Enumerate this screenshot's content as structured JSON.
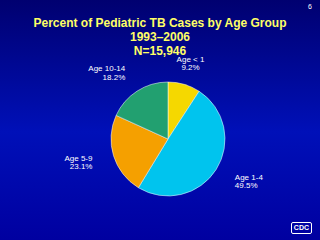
{
  "chart_data": {
    "type": "pie",
    "title": "Percent of Pediatric TB Cases by Age Group",
    "subtitle": [
      "1993–2006",
      "N=15,946"
    ],
    "categories": [
      "Age < 1",
      "Age 1-4",
      "Age 5-9",
      "Age 10-14"
    ],
    "values": [
      9.2,
      49.5,
      23.1,
      18.2
    ],
    "value_labels": [
      "9.2%",
      "49.5%",
      "23.1%",
      "18.2%"
    ],
    "colors": [
      "#f5d800",
      "#00c4ee",
      "#f5a000",
      "#22a070"
    ],
    "data_labels": true
  },
  "slide": {
    "number": "6",
    "logo": "CDC"
  }
}
